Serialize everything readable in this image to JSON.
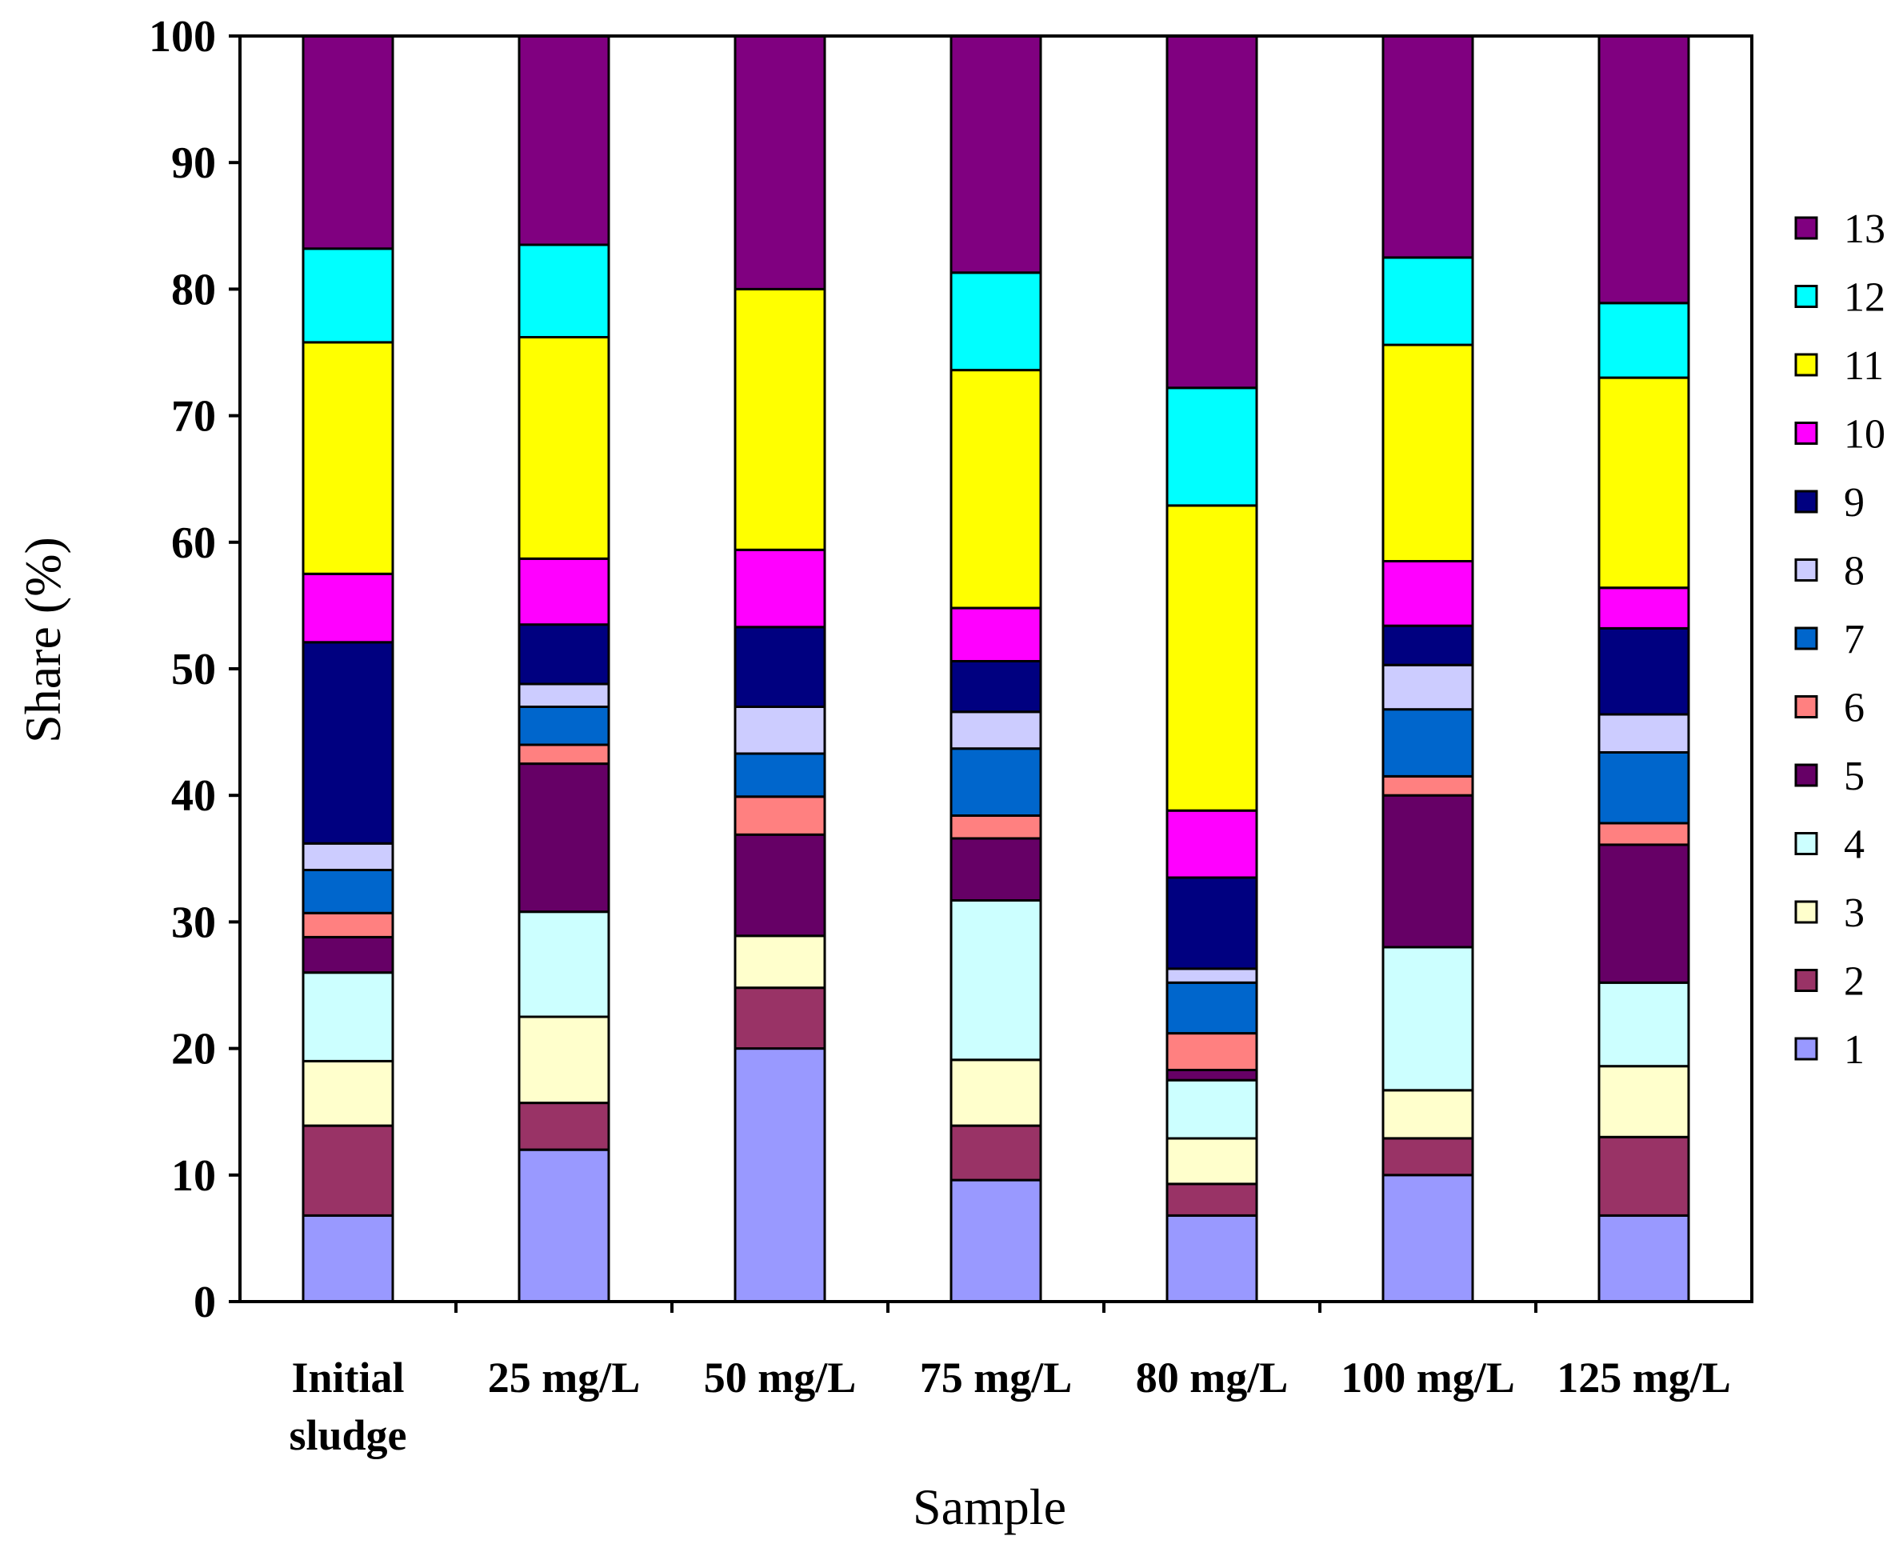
{
  "chart_data": {
    "type": "bar",
    "stacked": true,
    "title": "",
    "xlabel": "Sample",
    "ylabel": "Share (%)",
    "ylim": [
      0,
      100
    ],
    "yticks": [
      0,
      10,
      20,
      30,
      40,
      50,
      60,
      70,
      80,
      90,
      100
    ],
    "grid": false,
    "legend_position": "right",
    "categories": [
      [
        "Initial",
        "sludge"
      ],
      [
        "25 mg/L"
      ],
      [
        "50 mg/L"
      ],
      [
        "75 mg/L"
      ],
      [
        "80 mg/L"
      ],
      [
        "100 mg/L"
      ],
      [
        "125 mg/L"
      ]
    ],
    "series": [
      {
        "name": "1",
        "color": "#9999ff",
        "values": [
          6.8,
          12.0,
          20.0,
          9.6,
          6.8,
          10.0,
          6.8
        ]
      },
      {
        "name": "2",
        "color": "#993366",
        "values": [
          7.1,
          3.7,
          4.8,
          4.3,
          2.5,
          2.9,
          6.2
        ]
      },
      {
        "name": "3",
        "color": "#ffffcc",
        "values": [
          5.1,
          6.8,
          4.1,
          5.2,
          3.6,
          3.8,
          5.6
        ]
      },
      {
        "name": "4",
        "color": "#ccffff",
        "values": [
          7.0,
          8.3,
          0.0,
          12.6,
          4.6,
          11.3,
          6.6
        ]
      },
      {
        "name": "5",
        "color": "#660066",
        "values": [
          2.8,
          11.7,
          8.0,
          4.9,
          0.8,
          12.0,
          10.9
        ]
      },
      {
        "name": "6",
        "color": "#ff8080",
        "values": [
          1.9,
          1.5,
          3.0,
          1.8,
          2.9,
          1.5,
          1.7
        ]
      },
      {
        "name": "7",
        "color": "#0066cc",
        "values": [
          3.4,
          3.0,
          3.4,
          5.3,
          4.0,
          5.3,
          5.6
        ]
      },
      {
        "name": "8",
        "color": "#ccccff",
        "values": [
          2.1,
          1.8,
          3.7,
          2.9,
          1.1,
          3.5,
          3.0
        ]
      },
      {
        "name": "9",
        "color": "#000080",
        "values": [
          15.9,
          4.7,
          6.3,
          4.0,
          7.2,
          3.1,
          6.8
        ]
      },
      {
        "name": "10",
        "color": "#ff00ff",
        "values": [
          5.4,
          5.2,
          6.1,
          4.2,
          5.3,
          5.1,
          3.2
        ]
      },
      {
        "name": "11",
        "color": "#ffff00",
        "values": [
          18.3,
          17.5,
          20.6,
          18.8,
          24.1,
          17.1,
          16.6
        ]
      },
      {
        "name": "12",
        "color": "#00ffff",
        "values": [
          7.4,
          7.3,
          0.0,
          7.7,
          9.3,
          6.9,
          5.9
        ]
      },
      {
        "name": "13",
        "color": "#800080",
        "values": [
          16.8,
          16.5,
          20.0,
          18.7,
          27.8,
          17.5,
          21.1
        ]
      }
    ]
  }
}
